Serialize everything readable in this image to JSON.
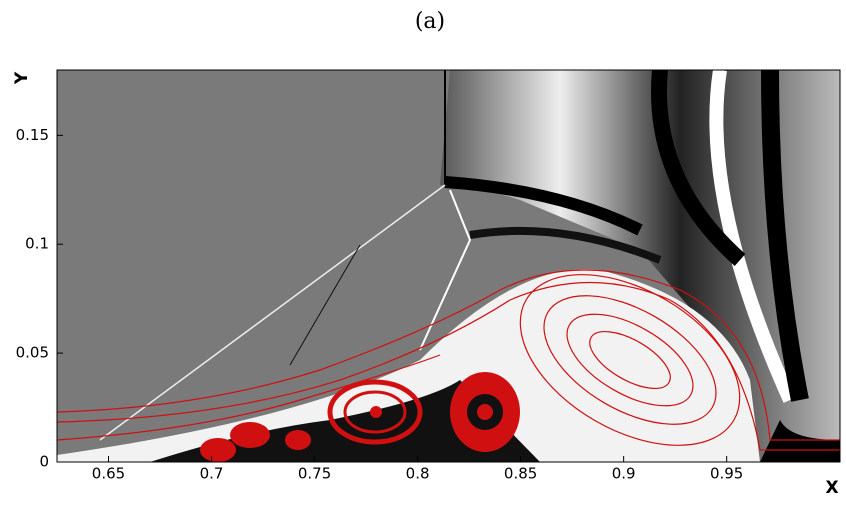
{
  "chart_data": {
    "type": "field",
    "title": "(a)",
    "x_label": "X",
    "y_label": "Y",
    "xlim": [
      0.625,
      1.005
    ],
    "ylim": [
      0,
      0.18
    ],
    "xticks": [
      0.65,
      0.7,
      0.75,
      0.8,
      0.85,
      0.9,
      0.95
    ],
    "yticks": [
      0,
      0.05,
      0.1,
      0.15
    ]
  }
}
